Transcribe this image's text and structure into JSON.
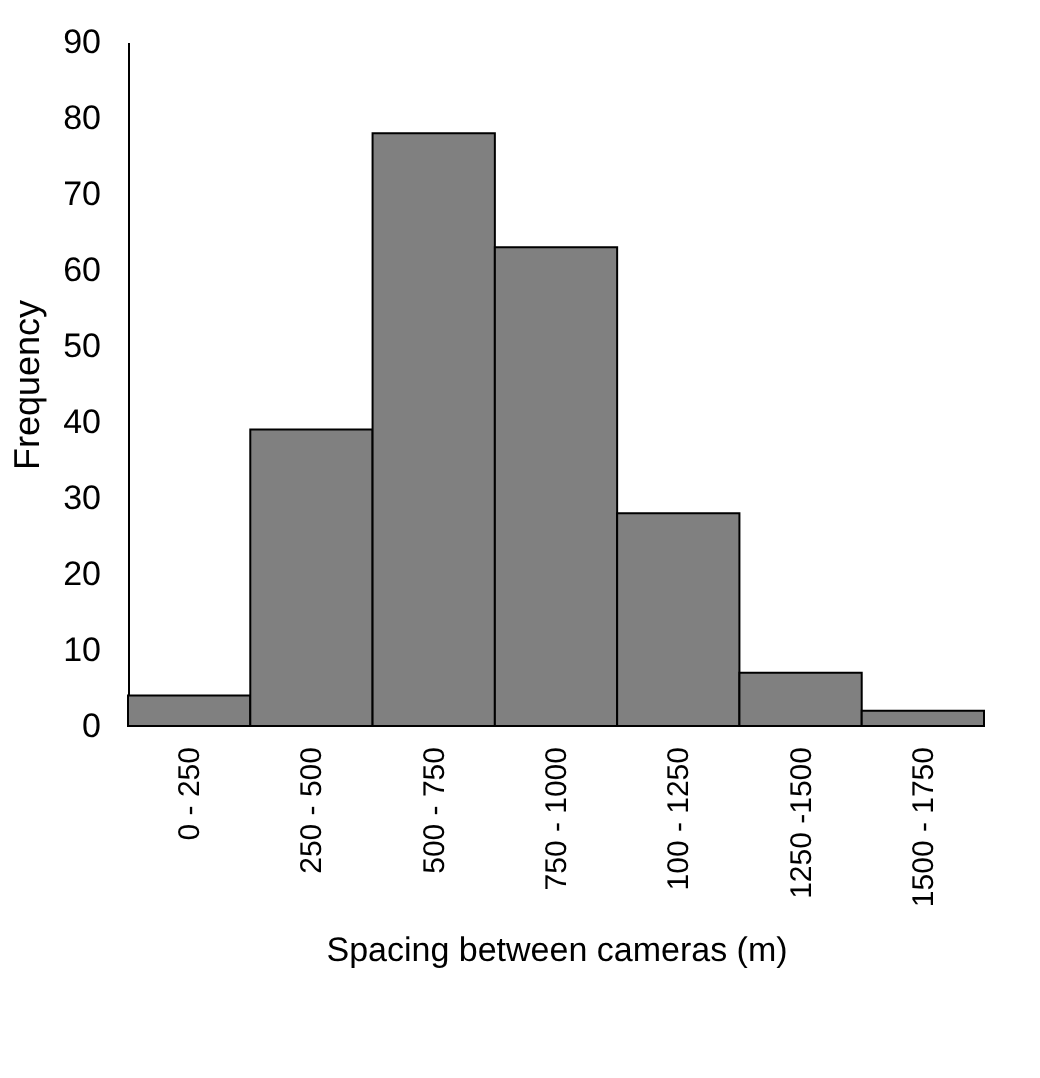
{
  "chart_data": {
    "type": "bar",
    "xlabel": "Spacing between cameras (m)",
    "ylabel": "Frequency",
    "categories": [
      "0 - 250",
      "250 - 500",
      "500 - 750",
      "750 - 1000",
      "100 - 1250",
      "1250 -1500",
      "1500 - 1750"
    ],
    "values": [
      4,
      39,
      78,
      63,
      28,
      7,
      2
    ],
    "color": "#808080",
    "ylim": [
      0,
      90
    ],
    "yticks": [
      0,
      10,
      20,
      30,
      40,
      50,
      60,
      70,
      80,
      90
    ],
    "grid": false
  }
}
